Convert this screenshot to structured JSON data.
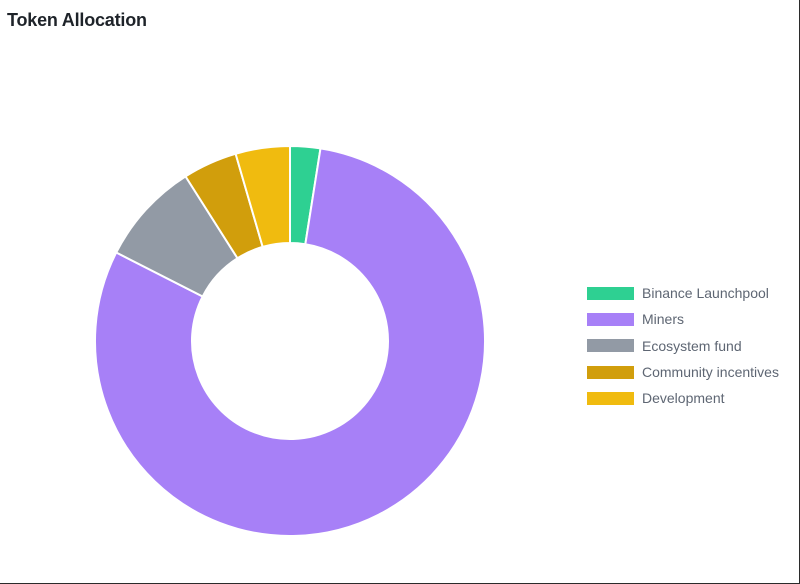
{
  "chart_data": {
    "type": "pie",
    "title": "Token Allocation",
    "donut": true,
    "legend_position": "right",
    "series": [
      {
        "name": "Binance Launchpool",
        "value": 2.5,
        "color": "#2ed092"
      },
      {
        "name": "Miners",
        "value": 80,
        "color": "#a780f7"
      },
      {
        "name": "Ecosystem fund",
        "value": 8.5,
        "color": "#929aa5"
      },
      {
        "name": "Community incentives",
        "value": 4.5,
        "color": "#d19e0c"
      },
      {
        "name": "Development",
        "value": 4.5,
        "color": "#f0bb0f"
      }
    ]
  }
}
